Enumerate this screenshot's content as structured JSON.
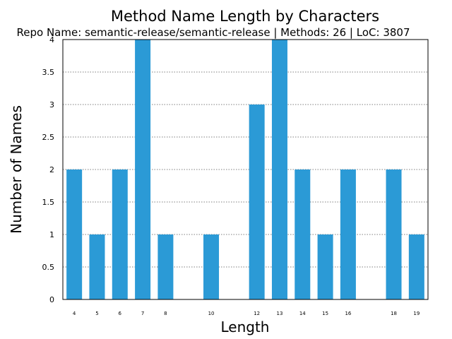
{
  "chart_data": {
    "type": "bar",
    "title": "Method Name Length by Characters",
    "subtitle": "Repo Name: semantic-release/semantic-release | Methods: 26 | LoC: 3807",
    "xlabel": "Length",
    "ylabel": "Number of Names",
    "categories": [
      "4",
      "5",
      "6",
      "7",
      "8",
      "10",
      "12",
      "13",
      "14",
      "15",
      "16",
      "18",
      "19"
    ],
    "x": [
      4,
      5,
      6,
      7,
      8,
      10,
      12,
      13,
      14,
      15,
      16,
      18,
      19
    ],
    "values": [
      2,
      1,
      2,
      4,
      1,
      1,
      3,
      4,
      2,
      1,
      2,
      2,
      1
    ],
    "xlim": [
      3.5,
      19.5
    ],
    "ylim": [
      0,
      4
    ],
    "yticks": [
      "0",
      "0.5",
      "1",
      "1.5",
      "2",
      "2.5",
      "3",
      "3.5",
      "4"
    ],
    "grid": "horizontal dotted",
    "bar_color": "#2b9ad6"
  }
}
